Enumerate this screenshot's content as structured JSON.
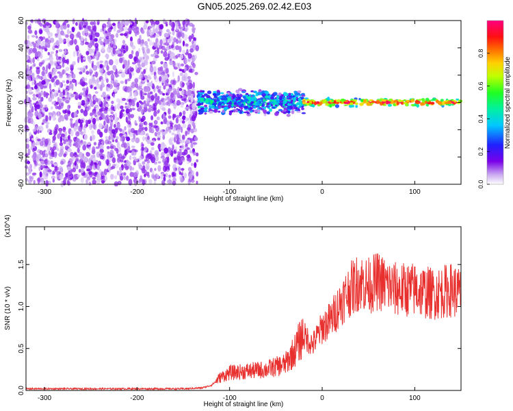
{
  "title": "GN05.2025.269.02.42.E03",
  "chart_data": [
    {
      "type": "heatmap",
      "xlabel": "Height of straight line (km)",
      "ylabel": "Frequency (Hz)",
      "xlim": [
        -320,
        150
      ],
      "ylim": [
        -60,
        60
      ],
      "xticks": [
        -300,
        -200,
        -100,
        0,
        100
      ],
      "yticks": [
        -60,
        -40,
        -20,
        0,
        20,
        40,
        60
      ],
      "colorbar": {
        "label": "Normalized spectral amplitude",
        "range": [
          0,
          1
        ],
        "ticks": [
          "0.0",
          "0.2",
          "0.4",
          "0.6",
          "0.8"
        ]
      },
      "regions": [
        {
          "x_from": -320,
          "x_to": -135,
          "freq_min": -60,
          "freq_max": 60,
          "amplitude": 0.1
        },
        {
          "x_from": -135,
          "x_to": -20,
          "freq_min": -10,
          "freq_max": 10,
          "amplitude": 0.35
        },
        {
          "x_from": -20,
          "x_to": 150,
          "freq_min": -3,
          "freq_max": 3,
          "amplitude": 0.9
        }
      ]
    },
    {
      "type": "line",
      "xlabel": "Height of straight line (km)",
      "ylabel": "SNR (10 * v/v)",
      "y_multiplier": "(x10^4)",
      "xlim": [
        -320,
        150
      ],
      "ylim": [
        0,
        1.95
      ],
      "xticks": [
        -300,
        -200,
        -100,
        0,
        100
      ],
      "yticks": [
        "0.0",
        "0.5",
        "1.0",
        "1.5"
      ],
      "series": [
        {
          "color": "#e8302e",
          "x": [
            -320,
            -300,
            -250,
            -200,
            -150,
            -130,
            -120,
            -110,
            -100,
            -80,
            -60,
            -40,
            -30,
            -20,
            -10,
            0,
            10,
            20,
            30,
            40,
            50,
            60,
            80,
            100,
            120,
            140,
            150
          ],
          "y": [
            0.02,
            0.02,
            0.02,
            0.02,
            0.02,
            0.03,
            0.06,
            0.15,
            0.2,
            0.22,
            0.24,
            0.3,
            0.45,
            0.65,
            0.55,
            0.75,
            0.85,
            1.05,
            1.2,
            1.3,
            1.25,
            1.3,
            1.2,
            1.2,
            1.15,
            1.2,
            1.15
          ]
        }
      ]
    }
  ]
}
